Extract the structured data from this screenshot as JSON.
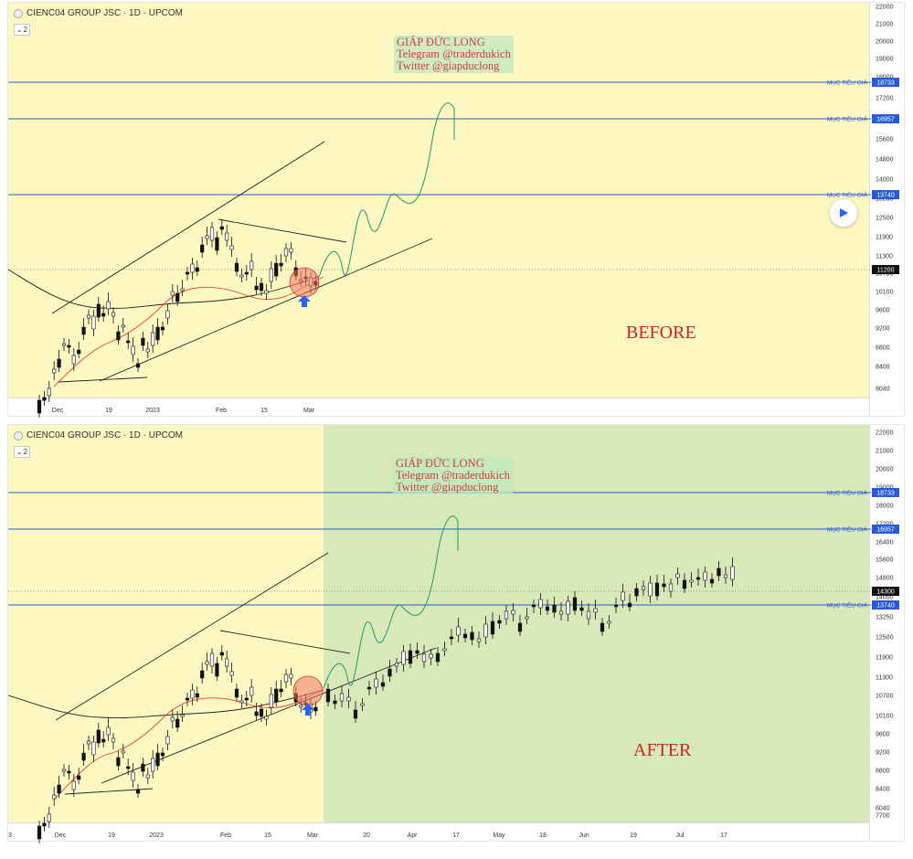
{
  "symbol": "CIENC04 GROUP JSC · 1D · UPCOM",
  "interval_badge": "2",
  "watermark": {
    "line1": "GIÁP ĐỨC LONG",
    "line2": "Telegram @traderdukich",
    "line3": "Twitter @giapduclong"
  },
  "labels": {
    "before": "BEFORE",
    "after": "AFTER"
  },
  "target_label": "MỤC TIÊU GIÁ",
  "colors": {
    "panel_bg": "#fdf8c2",
    "after_bg": "#d8e9b9",
    "target_line": "#2a5bd7",
    "ma_line": "#e24a3a",
    "projection": "#1e9a6e",
    "candle": "#111111"
  },
  "chart_data": [
    {
      "type": "candlestick",
      "label": "BEFORE",
      "yticks": [
        22000,
        21000,
        20000,
        19000,
        18000,
        17200,
        16400,
        15600,
        14800,
        14000,
        13250,
        12500,
        11900,
        11300,
        10700,
        10100,
        9600,
        9200,
        8800,
        8400,
        8040
      ],
      "xticks": [
        "Dec",
        "19",
        "2023",
        "Feb",
        "15",
        "Mar"
      ],
      "targets": [
        18733,
        16957,
        13740
      ],
      "last_price": 11200,
      "ylim": [
        7700,
        22000
      ]
    },
    {
      "type": "candlestick",
      "label": "AFTER",
      "yticks": [
        22000,
        21000,
        20000,
        19000,
        18000,
        17200,
        16400,
        15600,
        14800,
        14000,
        13250,
        12500,
        11900,
        11300,
        10700,
        10100,
        9600,
        9200,
        8800,
        8400,
        8040,
        7700
      ],
      "xticks": [
        "3",
        "Dec",
        "19",
        "2023",
        "Feb",
        "15",
        "Mar",
        "20",
        "Apr",
        "17",
        "May",
        "18",
        "Jun",
        "19",
        "Jul",
        "17"
      ],
      "targets": [
        18733,
        16957,
        13740
      ],
      "last_price": 14300,
      "ylim": [
        7700,
        22000
      ]
    }
  ]
}
